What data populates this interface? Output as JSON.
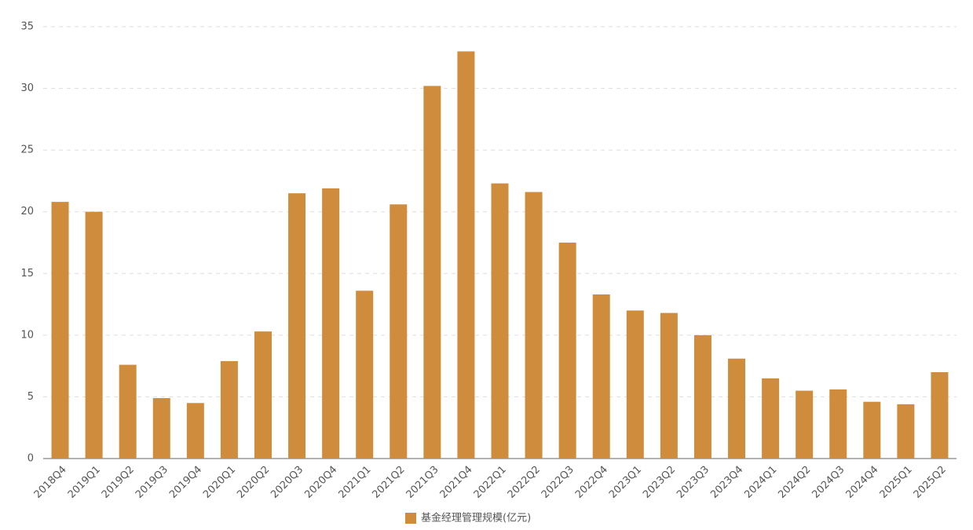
{
  "chart_data": {
    "type": "bar",
    "categories": [
      "2018Q4",
      "2019Q1",
      "2019Q2",
      "2019Q3",
      "2019Q4",
      "2020Q1",
      "2020Q2",
      "2020Q3",
      "2020Q4",
      "2021Q1",
      "2021Q2",
      "2021Q3",
      "2021Q4",
      "2022Q1",
      "2022Q2",
      "2022Q3",
      "2022Q4",
      "2023Q1",
      "2023Q2",
      "2023Q3",
      "2023Q4",
      "2024Q1",
      "2024Q2",
      "2024Q3",
      "2024Q4",
      "2025Q1",
      "2025Q2"
    ],
    "series": [
      {
        "name": "基金经理管理规模(亿元)",
        "color": "#cf8c3d",
        "values": [
          20.8,
          20.0,
          7.6,
          4.9,
          4.5,
          7.9,
          10.3,
          21.5,
          21.9,
          13.6,
          20.6,
          30.2,
          33.0,
          22.3,
          21.6,
          17.5,
          13.3,
          12.0,
          11.8,
          10.0,
          8.1,
          6.5,
          5.5,
          5.6,
          4.6,
          4.4,
          7.0
        ]
      }
    ],
    "ylim": [
      0,
      35
    ],
    "yticks": [
      0,
      5,
      10,
      15,
      20,
      25,
      30,
      35
    ],
    "grid": true,
    "legend": "bottom"
  }
}
